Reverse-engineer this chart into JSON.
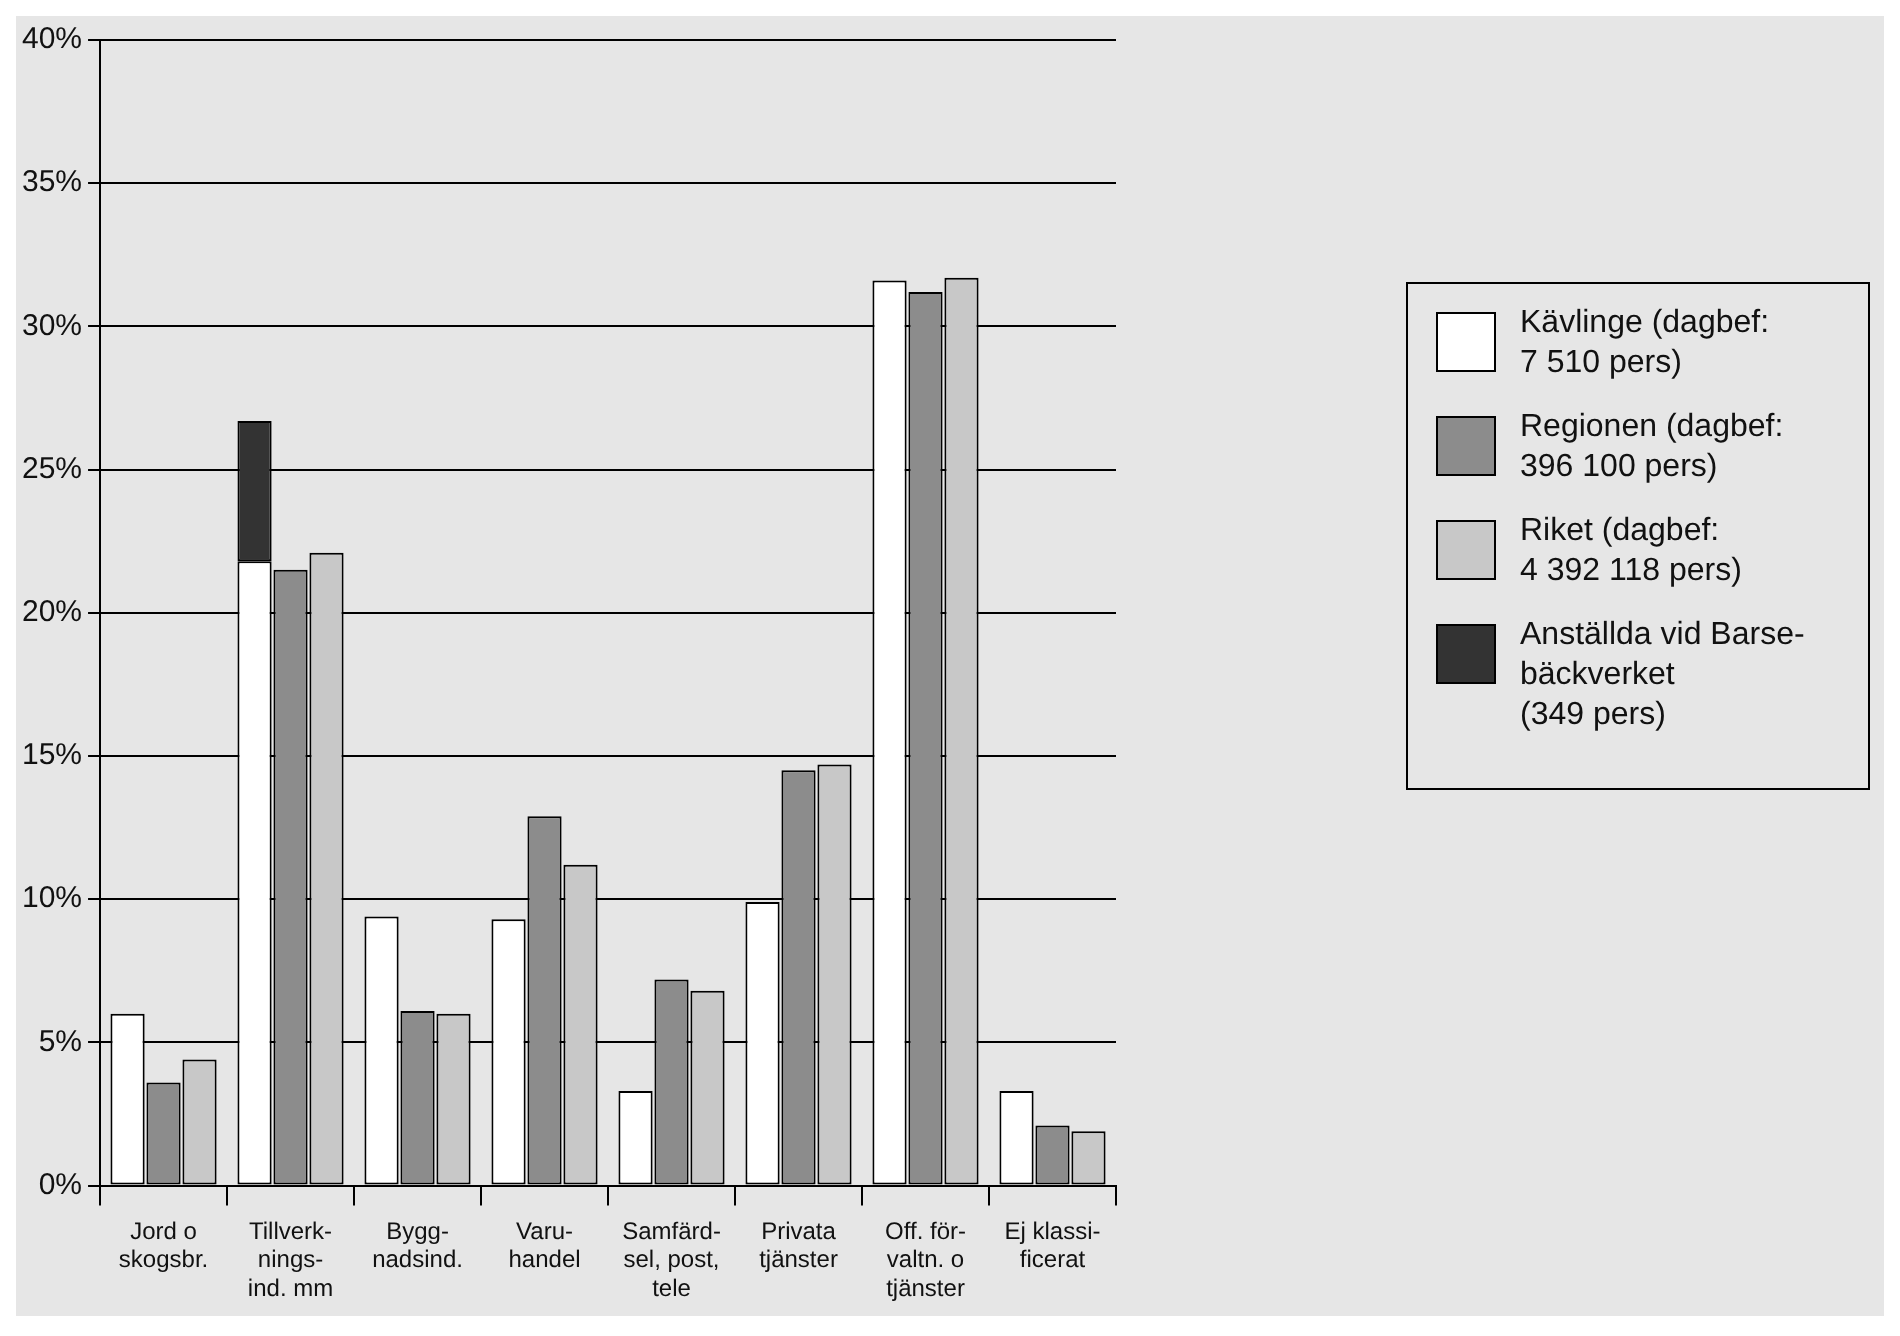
{
  "chart_data": {
    "type": "bar",
    "categories": [
      "Jord o\nskogsbr.",
      "Tillverk-\nnings-\nind. mm",
      "Bygg-\nnadsind.",
      "Varu-\nhandel",
      "Samfärd-\nsel, post,\ntele",
      "Privata\ntjänster",
      "Off. för-\nvaltn. o\ntjänster",
      "Ej klassi-\nficerat"
    ],
    "series": [
      {
        "name": "Kävlinge (dagbef:\n7 510 pers)",
        "color": "#ffffff",
        "values": [
          6.0,
          21.8,
          9.4,
          9.3,
          3.3,
          9.9,
          31.6,
          3.3
        ]
      },
      {
        "name": "Anställda vid Barse-\nbäckverket\n(349 pers)",
        "color": "#333333",
        "values": [
          null,
          4.9,
          null,
          null,
          null,
          null,
          null,
          null
        ],
        "base": [
          null,
          21.8,
          null,
          null,
          null,
          null,
          null,
          null
        ]
      },
      {
        "name": "Regionen (dagbef:\n396 100 pers)",
        "color": "#8c8c8c",
        "values": [
          3.6,
          21.5,
          6.1,
          12.9,
          7.2,
          14.5,
          31.2,
          2.1
        ]
      },
      {
        "name": "Riket (dagbef:\n4 392 118 pers)",
        "color": "#c8c8c8",
        "values": [
          4.4,
          22.1,
          6.0,
          11.2,
          6.8,
          14.7,
          31.7,
          1.9
        ]
      }
    ],
    "ylim": [
      0,
      40
    ],
    "yticks": [
      {
        "value": 0,
        "label": "0%"
      },
      {
        "value": 5,
        "label": "5%"
      },
      {
        "value": 10,
        "label": "10%"
      },
      {
        "value": 15,
        "label": "15%"
      },
      {
        "value": 20,
        "label": "20%"
      },
      {
        "value": 25,
        "label": "25%"
      },
      {
        "value": 30,
        "label": "30%"
      },
      {
        "value": 35,
        "label": "35%"
      },
      {
        "value": 40,
        "label": "40%"
      }
    ],
    "grid": "y",
    "legend": "right"
  }
}
